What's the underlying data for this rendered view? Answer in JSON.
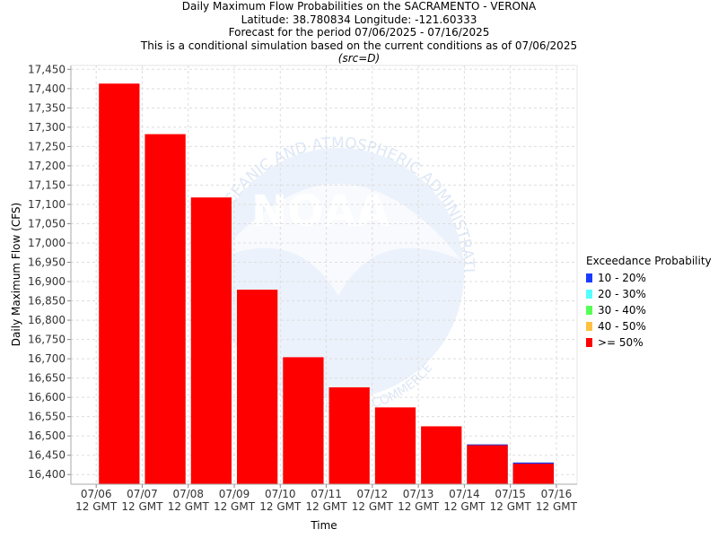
{
  "header": {
    "title": "Daily Maximum Flow Probabilities on the SACRAMENTO - VERONA",
    "location": "Latitude: 38.780834 Longitude: -121.60333",
    "period": "Forecast for the period 07/06/2025 - 07/16/2025",
    "note": "This is a conditional simulation based on the current conditions as of 07/06/2025",
    "src": "(src=D)"
  },
  "watermark": {
    "logo_text": "NOAA",
    "ring_top": "NATIONAL OCEANIC AND ATMOSPHERIC ADMINISTRATION",
    "ring_bottom": "U.S. DEPARTMENT OF COMMERCE"
  },
  "legend": {
    "title": "Exceedance Probability",
    "items": [
      {
        "label": "10 - 20%",
        "color": "#1a3cff"
      },
      {
        "label": "20 - 30%",
        "color": "#55ffff"
      },
      {
        "label": "30 - 40%",
        "color": "#55ff55"
      },
      {
        "label": "40 - 50%",
        "color": "#ffc040"
      },
      {
        "label": ">= 50%",
        "color": "#ff0000"
      }
    ]
  },
  "chart_data": {
    "type": "bar",
    "xlabel": "Time",
    "ylabel": "Daily Maximum Flow (CFS)",
    "ylim": [
      16375,
      17460
    ],
    "yticks": [
      16400,
      16450,
      16500,
      16550,
      16600,
      16650,
      16700,
      16750,
      16800,
      16850,
      16900,
      16950,
      17000,
      17050,
      17100,
      17150,
      17200,
      17250,
      17300,
      17350,
      17400,
      17450
    ],
    "ytick_labels": [
      "16,400",
      "16,450",
      "16,500",
      "16,550",
      "16,600",
      "16,650",
      "16,700",
      "16,750",
      "16,800",
      "16,850",
      "16,900",
      "16,950",
      "17,000",
      "17,050",
      "17,100",
      "17,150",
      "17,200",
      "17,250",
      "17,300",
      "17,350",
      "17,400",
      "17,450"
    ],
    "xtick_labels": [
      [
        "07/06",
        "12 GMT"
      ],
      [
        "07/07",
        "12 GMT"
      ],
      [
        "07/08",
        "12 GMT"
      ],
      [
        "07/09",
        "12 GMT"
      ],
      [
        "07/10",
        "12 GMT"
      ],
      [
        "07/11",
        "12 GMT"
      ],
      [
        "07/12",
        "12 GMT"
      ],
      [
        "07/13",
        "12 GMT"
      ],
      [
        "07/14",
        "12 GMT"
      ],
      [
        "07/15",
        "12 GMT"
      ],
      [
        "07/16",
        "12 GMT"
      ]
    ],
    "bars": [
      {
        "date": "07/06",
        "ge_50": 17413
      },
      {
        "date": "07/07",
        "ge_50": 17282
      },
      {
        "date": "07/08",
        "ge_50": 17118
      },
      {
        "date": "07/09",
        "ge_50": 16879
      },
      {
        "date": "07/10",
        "ge_50": 16704
      },
      {
        "date": "07/11",
        "ge_50": 16626
      },
      {
        "date": "07/12",
        "ge_50": 16574
      },
      {
        "date": "07/13",
        "ge_50": 16525
      },
      {
        "date": "07/14",
        "ge_50": 16476,
        "p10_20": 16478
      },
      {
        "date": "07/15",
        "ge_50": 16428,
        "p10_20": 16431
      }
    ],
    "grid": true,
    "legend_position": "right"
  }
}
